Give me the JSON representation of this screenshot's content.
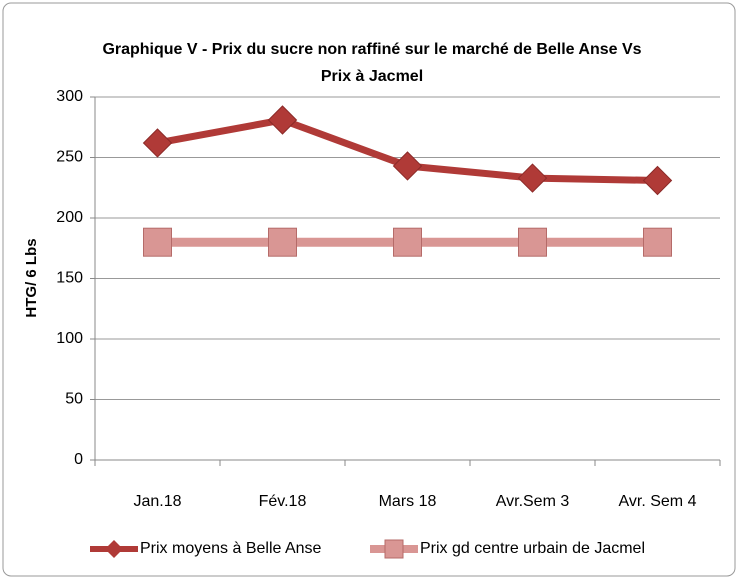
{
  "chart_data": {
    "type": "line",
    "title": [
      "Graphique V - Prix du sucre non raffiné sur le marché de Belle Anse Vs",
      "Prix à Jacmel"
    ],
    "y_label": "HTG/ 6 Lbs",
    "categories": [
      "Jan.18",
      "Fév.18",
      "Mars 18",
      "Avr.Sem 3",
      "Avr. Sem 4"
    ],
    "series": [
      {
        "name": "Prix moyens à Belle Anse",
        "color": "#b03a37",
        "marker": "diamond",
        "values": [
          262,
          281,
          243,
          233,
          231
        ]
      },
      {
        "name": "Prix gd centre urbain de Jacmel",
        "color": "#d99694",
        "marker": "square",
        "values": [
          180,
          180,
          180,
          180,
          180
        ]
      }
    ],
    "ylim": [
      0,
      300
    ],
    "yticks": [
      0,
      50,
      100,
      150,
      200,
      250,
      300
    ],
    "grid": true,
    "legend": "bottom"
  }
}
